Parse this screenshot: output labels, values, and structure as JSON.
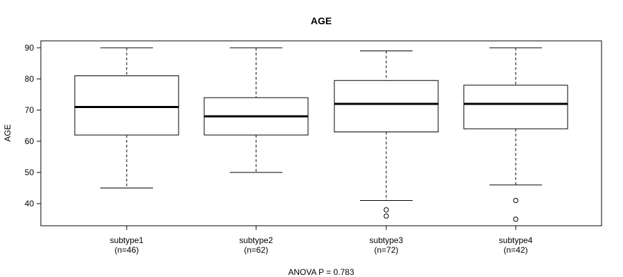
{
  "chart_data": {
    "type": "boxplot",
    "title": "AGE",
    "ylabel": "AGE",
    "xlabel": "",
    "ylim": [
      33,
      92
    ],
    "yticks": [
      40,
      50,
      60,
      70,
      80,
      90
    ],
    "grid": false,
    "legend": "none",
    "footnote": "ANOVA P = 0.783",
    "groups": [
      {
        "name": "subtype1",
        "n_label": "(n=46)",
        "whisker_low": 45,
        "q1": 62,
        "median": 71,
        "q3": 81,
        "whisker_high": 90,
        "outliers": []
      },
      {
        "name": "subtype2",
        "n_label": "(n=62)",
        "whisker_low": 50,
        "q1": 62,
        "median": 68,
        "q3": 74,
        "whisker_high": 90,
        "outliers": []
      },
      {
        "name": "subtype3",
        "n_label": "(n=72)",
        "whisker_low": 41,
        "q1": 63,
        "median": 72,
        "q3": 79.5,
        "whisker_high": 89,
        "outliers": [
          38,
          36
        ]
      },
      {
        "name": "subtype4",
        "n_label": "(n=42)",
        "whisker_low": 46,
        "q1": 64,
        "median": 72,
        "q3": 78,
        "whisker_high": 90,
        "outliers": [
          41,
          35
        ]
      }
    ]
  }
}
